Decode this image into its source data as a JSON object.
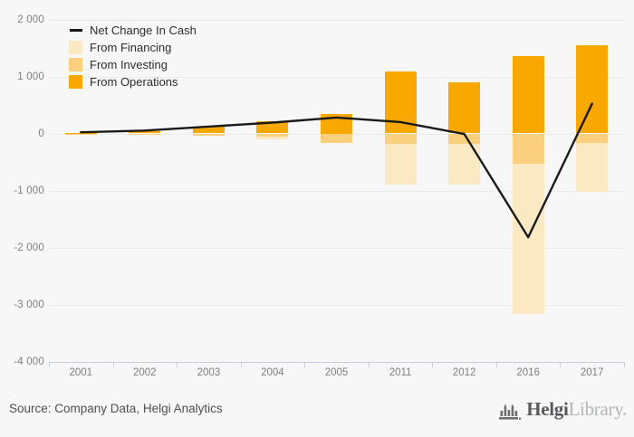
{
  "chart_data": {
    "type": "bar",
    "categories": [
      "2001",
      "2002",
      "2003",
      "2004",
      "2005",
      "2011",
      "2012",
      "2016",
      "2017"
    ],
    "series": [
      {
        "name": "From Operations",
        "type": "bar",
        "color": "#F8A800",
        "values": [
          10,
          45,
          120,
          210,
          350,
          1090,
          890,
          1360,
          1550
        ]
      },
      {
        "name": "From Investing",
        "type": "bar",
        "color": "#FAD07E",
        "values": [
          -5,
          -15,
          -40,
          -60,
          -160,
          -175,
          -175,
          -530,
          -165
        ]
      },
      {
        "name": "From Financing",
        "type": "bar",
        "color": "#FBE9C4",
        "values": [
          0,
          0,
          0,
          -45,
          0,
          -720,
          -720,
          -2640,
          -860
        ]
      },
      {
        "name": "Net Change In Cash",
        "type": "line",
        "color": "#1A1A1A",
        "values": [
          20,
          50,
          120,
          190,
          280,
          200,
          -10,
          -1820,
          520
        ]
      }
    ],
    "ylim": [
      -4000,
      2000
    ],
    "yticks": [
      {
        "value": 2000,
        "label": "2 000"
      },
      {
        "value": 1000,
        "label": "1 000"
      },
      {
        "value": 0,
        "label": "0"
      },
      {
        "value": -1000,
        "label": "-1 000"
      },
      {
        "value": -2000,
        "label": "-2 000"
      },
      {
        "value": -3000,
        "label": "-3 000"
      },
      {
        "value": -4000,
        "label": "-4 000"
      }
    ],
    "grid": true,
    "legend_position": "top-left",
    "legend": [
      {
        "label": "Net Change In Cash",
        "swatch": "line",
        "color": "#1A1A1A"
      },
      {
        "label": "From Financing",
        "swatch": "rect",
        "color": "#FBE9C4"
      },
      {
        "label": "From Investing",
        "swatch": "rect",
        "color": "#FAD07E"
      },
      {
        "label": "From Operations",
        "swatch": "rect",
        "color": "#F8A800"
      }
    ]
  },
  "footer": {
    "source": "Source: Company Data, Helgi Analytics",
    "logo": {
      "brand_primary": "Helgi",
      "brand_secondary": "Library."
    }
  }
}
